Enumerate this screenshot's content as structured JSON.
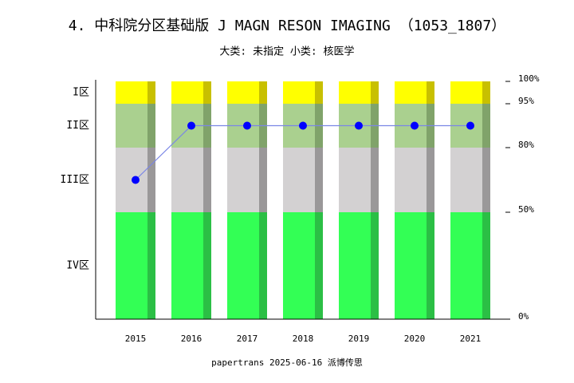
{
  "chart_data": {
    "type": "line",
    "title": "4. 中科院分区基础版 J MAGN RESON IMAGING （1053_1807）",
    "subtitle": "大类: 未指定 小类: 核医学",
    "footer": "papertrans 2025-06-16 派博传思",
    "categories": [
      "2015",
      "2016",
      "2017",
      "2018",
      "2019",
      "2020",
      "2021"
    ],
    "values": [
      65,
      87.5,
      87.5,
      87.5,
      87.5,
      87.5,
      87.5
    ],
    "color": "#0000ff",
    "line_color": "#7a86e6",
    "zones": [
      "IV区",
      "III区",
      "II区",
      "I区"
    ],
    "zone_colors": [
      [
        "#33ff55",
        "#2bbf45"
      ],
      [
        "#d3d1d2",
        "#9a9899"
      ],
      [
        "#aad08f",
        "#80a36a"
      ],
      [
        "#ffff00",
        "#c8c000"
      ]
    ],
    "ylim": [
      0,
      100
    ],
    "yticks": [
      {
        "value": 0,
        "label": "0%"
      },
      {
        "value": 50,
        "label": "50%"
      },
      {
        "value": 80,
        "label": "80%"
      },
      {
        "value": 95,
        "label": "95%"
      },
      {
        "value": 100,
        "label": "100%"
      }
    ]
  }
}
